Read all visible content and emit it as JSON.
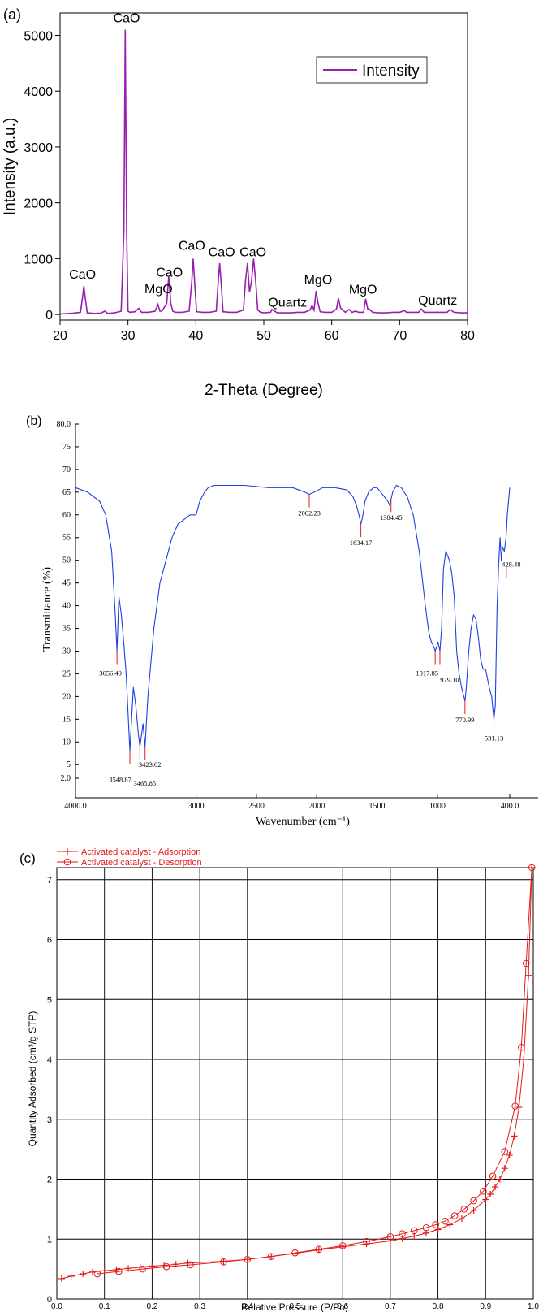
{
  "chart_data": [
    {
      "panel": "(a)",
      "type": "line",
      "xlabel": "2-Theta (Degree)",
      "ylabel": "Intensity (a.u.)",
      "xlim": [
        20,
        80
      ],
      "ylim": [
        -100,
        5400
      ],
      "xticks": [
        20,
        30,
        40,
        50,
        60,
        70,
        80
      ],
      "yticks": [
        0,
        1000,
        2000,
        3000,
        4000,
        5000
      ],
      "legend": {
        "position": "top-right",
        "entries": [
          "Intensity"
        ]
      },
      "color": "#9a1fb0",
      "series": [
        {
          "name": "Intensity",
          "x": [
            20,
            21,
            22,
            23,
            23.3,
            23.5,
            23.7,
            24,
            25,
            26,
            26.6,
            27,
            28,
            29,
            29.4,
            29.6,
            29.8,
            30,
            30.3,
            31,
            31.6,
            32,
            33,
            34,
            34.4,
            34.7,
            35,
            35.7,
            36,
            36.3,
            36.6,
            37,
            38,
            39,
            39.4,
            39.6,
            39.8,
            40.1,
            41,
            42,
            43,
            43.3,
            43.5,
            43.7,
            44,
            45,
            46,
            47,
            47.3,
            47.6,
            47.9,
            48.2,
            48.5,
            48.8,
            49.1,
            49.5,
            50,
            51,
            51.2,
            52,
            53,
            54,
            55,
            56,
            56.8,
            57.1,
            57.4,
            57.7,
            58,
            58.3,
            59,
            60,
            60.7,
            61,
            61.3,
            62,
            62.6,
            63,
            63.5,
            64,
            64.7,
            65,
            65.3,
            65.6,
            66,
            67,
            68,
            69,
            70,
            70.7,
            71,
            72,
            72.8,
            73.2,
            73.6,
            74,
            75,
            76,
            77,
            77.4,
            78,
            79,
            80
          ],
          "y": [
            10,
            15,
            25,
            40,
            300,
            510,
            300,
            30,
            20,
            25,
            60,
            20,
            30,
            60,
            1500,
            5100,
            1500,
            60,
            40,
            50,
            110,
            40,
            40,
            60,
            180,
            60,
            60,
            200,
            680,
            200,
            60,
            40,
            40,
            60,
            600,
            1000,
            600,
            50,
            40,
            40,
            60,
            600,
            920,
            600,
            50,
            40,
            40,
            80,
            600,
            920,
            400,
            600,
            1000,
            600,
            80,
            40,
            30,
            40,
            90,
            30,
            30,
            30,
            40,
            40,
            80,
            160,
            80,
            420,
            200,
            50,
            40,
            40,
            100,
            290,
            120,
            40,
            90,
            40,
            60,
            40,
            40,
            280,
            100,
            90,
            40,
            30,
            30,
            40,
            40,
            70,
            40,
            40,
            40,
            100,
            40,
            40,
            40,
            40,
            40,
            90,
            40,
            30,
            30
          ]
        }
      ],
      "annotations": [
        {
          "text": "CaO",
          "x": 23.3,
          "y": 640
        },
        {
          "text": "CaO",
          "x": 29.8,
          "y": 5230
        },
        {
          "text": "MgO",
          "x": 34.5,
          "y": 380
        },
        {
          "text": "CaO",
          "x": 36.1,
          "y": 680
        },
        {
          "text": "CaO",
          "x": 39.4,
          "y": 1160
        },
        {
          "text": "CaO",
          "x": 43.8,
          "y": 1040
        },
        {
          "text": "CaO",
          "x": 48.4,
          "y": 1040
        },
        {
          "text": "Quartz",
          "x": 53.5,
          "y": 140
        },
        {
          "text": "MgO",
          "x": 58,
          "y": 550
        },
        {
          "text": "MgO",
          "x": 64.6,
          "y": 370
        },
        {
          "text": "Quartz",
          "x": 75.6,
          "y": 180
        }
      ]
    },
    {
      "panel": "(b)",
      "type": "line",
      "xlabel": "Wavenumber  (cm⁻¹)",
      "ylabel": "Transmittance  (%)",
      "xlim": [
        4000,
        400
      ],
      "ylim": [
        2,
        80
      ],
      "xticks": [
        {
          "v": 4000,
          "l": "4000.0"
        },
        {
          "v": 3000,
          "l": "3000"
        },
        {
          "v": 2500,
          "l": "2500"
        },
        {
          "v": 2000,
          "l": "2000"
        },
        {
          "v": 1500,
          "l": "1500"
        },
        {
          "v": 1000,
          "l": "1000"
        },
        {
          "v": 400,
          "l": "400.0"
        }
      ],
      "yticks": [
        {
          "v": 2,
          "l": "2.0"
        },
        {
          "v": 5,
          "l": "5"
        },
        {
          "v": 10,
          "l": "10"
        },
        {
          "v": 15,
          "l": "15"
        },
        {
          "v": 20,
          "l": "20"
        },
        {
          "v": 25,
          "l": "25"
        },
        {
          "v": 30,
          "l": "30"
        },
        {
          "v": 35,
          "l": "35"
        },
        {
          "v": 40,
          "l": "40"
        },
        {
          "v": 45,
          "l": "45"
        },
        {
          "v": 50,
          "l": "50"
        },
        {
          "v": 55,
          "l": "55"
        },
        {
          "v": 60,
          "l": "60"
        },
        {
          "v": 65,
          "l": "65"
        },
        {
          "v": 70,
          "l": "70"
        },
        {
          "v": 75,
          "l": "75"
        },
        {
          "v": 80,
          "l": "80.0"
        }
      ],
      "color": "#1f3fe0",
      "series": [
        {
          "name": "",
          "x": [
            4000,
            3900,
            3800,
            3750,
            3700,
            3670,
            3656,
            3640,
            3620,
            3600,
            3580,
            3560,
            3549,
            3535,
            3520,
            3500,
            3480,
            3466,
            3450,
            3440,
            3423,
            3400,
            3350,
            3300,
            3250,
            3200,
            3150,
            3100,
            3050,
            3000,
            2970,
            2950,
            2930,
            2900,
            2850,
            2800,
            2700,
            2600,
            2400,
            2200,
            2100,
            2062,
            2020,
            1950,
            1850,
            1750,
            1700,
            1670,
            1650,
            1634,
            1620,
            1600,
            1570,
            1530,
            1500,
            1470,
            1440,
            1410,
            1395,
            1384,
            1370,
            1340,
            1300,
            1250,
            1200,
            1150,
            1100,
            1070,
            1050,
            1030,
            1018,
            1005,
            995,
            979,
            965,
            950,
            930,
            900,
            880,
            860,
            840,
            820,
            800,
            780,
            771,
            760,
            740,
            720,
            700,
            680,
            660,
            640,
            620,
            600,
            585,
            570,
            550,
            531,
            520,
            505,
            490,
            480,
            470,
            460,
            445,
            430,
            420,
            410,
            400
          ],
          "y": [
            66,
            65,
            63,
            60,
            52,
            38,
            30,
            42,
            38,
            32,
            25,
            14,
            8,
            15,
            22,
            18,
            12,
            9,
            12,
            14,
            9,
            20,
            35,
            45,
            50,
            55,
            58,
            59,
            60,
            60,
            63,
            64,
            65,
            66,
            66.5,
            66.5,
            66.5,
            66.5,
            66,
            66,
            65,
            64.5,
            65,
            66,
            66,
            65.5,
            64,
            62,
            60,
            58,
            59.5,
            63,
            65,
            66,
            66,
            65,
            64,
            63,
            62,
            63.5,
            65,
            66.5,
            66,
            64,
            60,
            52,
            40,
            34,
            32,
            31,
            30,
            31,
            32,
            30,
            35,
            48,
            52,
            50,
            47,
            42,
            30,
            25,
            22,
            20,
            19,
            22,
            30,
            35,
            38,
            37,
            33,
            28,
            26,
            26,
            24,
            22,
            20,
            15,
            18,
            40,
            50,
            55,
            50,
            53,
            52,
            55,
            60,
            63,
            66
          ]
        }
      ],
      "peaks": [
        {
          "label": "3656.40",
          "x": 3656,
          "y": 30
        },
        {
          "label": "3548.87",
          "x": 3549,
          "y": 8
        },
        {
          "label": "3465.85",
          "x": 3466,
          "y": 9
        },
        {
          "label": "3423.02",
          "x": 3423,
          "y": 9
        },
        {
          "label": "2062.23",
          "x": 2062,
          "y": 64.5
        },
        {
          "label": "1634.17",
          "x": 1634,
          "y": 58
        },
        {
          "label": "1384.45",
          "x": 1384,
          "y": 63.5
        },
        {
          "label": "1017.85",
          "x": 1018,
          "y": 30
        },
        {
          "label": "979.10",
          "x": 979,
          "y": 30
        },
        {
          "label": "770.99",
          "x": 771,
          "y": 19
        },
        {
          "label": "531.13",
          "x": 531,
          "y": 15
        },
        {
          "label": "428.48",
          "x": 428,
          "y": 49
        }
      ]
    },
    {
      "panel": "(c)",
      "type": "line",
      "xlabel": "Relative Pressure (P/Po)",
      "ylabel": "Quantity Adsorbed (cm³/g STP)",
      "xlim": [
        0,
        1.0
      ],
      "ylim": [
        0,
        7.2
      ],
      "xticks": [
        {
          "v": 0,
          "l": "0.0"
        },
        {
          "v": 0.1,
          "l": "0.1"
        },
        {
          "v": 0.2,
          "l": "0.2"
        },
        {
          "v": 0.3,
          "l": "0.3"
        },
        {
          "v": 0.4,
          "l": "0.4"
        },
        {
          "v": 0.5,
          "l": "0.5"
        },
        {
          "v": 0.6,
          "l": "0.6"
        },
        {
          "v": 0.7,
          "l": "0.7"
        },
        {
          "v": 0.8,
          "l": "0.8"
        },
        {
          "v": 0.9,
          "l": "0.9"
        },
        {
          "v": 1.0,
          "l": "1.0"
        }
      ],
      "yticks": [
        {
          "v": 0,
          "l": "0"
        },
        {
          "v": 1,
          "l": "1"
        },
        {
          "v": 2,
          "l": "2"
        },
        {
          "v": 3,
          "l": "3"
        },
        {
          "v": 4,
          "l": "4"
        },
        {
          "v": 5,
          "l": "5"
        },
        {
          "v": 6,
          "l": "6"
        },
        {
          "v": 7,
          "l": "7"
        }
      ],
      "grid": true,
      "legend": {
        "position": "top-left",
        "entries": [
          "Activated catalyst - Adsorption",
          "Activated catalyst - Desorption"
        ]
      },
      "color": "#e41a1a",
      "series": [
        {
          "name": "Activated catalyst - Adsorption",
          "marker": "plus",
          "x": [
            0.01,
            0.03,
            0.055,
            0.075,
            0.1,
            0.125,
            0.15,
            0.175,
            0.2,
            0.225,
            0.25,
            0.275,
            0.35,
            0.4,
            0.45,
            0.5,
            0.55,
            0.6,
            0.65,
            0.7,
            0.725,
            0.75,
            0.775,
            0.8,
            0.825,
            0.85,
            0.875,
            0.9,
            0.91,
            0.92,
            0.93,
            0.94,
            0.95,
            0.96,
            0.97,
            0.98,
            0.99,
            0.997
          ],
          "y": [
            0.34,
            0.38,
            0.42,
            0.45,
            0.47,
            0.49,
            0.51,
            0.53,
            0.55,
            0.56,
            0.58,
            0.6,
            0.63,
            0.66,
            0.71,
            0.76,
            0.82,
            0.87,
            0.92,
            0.97,
            1.01,
            1.05,
            1.1,
            1.16,
            1.24,
            1.34,
            1.48,
            1.66,
            1.75,
            1.87,
            2.0,
            2.18,
            2.4,
            2.72,
            3.2,
            4.0,
            5.4,
            7.2
          ]
        },
        {
          "name": "Activated catalyst - Desorption",
          "marker": "circle",
          "x": [
            0.997,
            0.985,
            0.975,
            0.962,
            0.94,
            0.915,
            0.895,
            0.875,
            0.855,
            0.835,
            0.815,
            0.795,
            0.775,
            0.75,
            0.725,
            0.7,
            0.65,
            0.6,
            0.55,
            0.5,
            0.45,
            0.4,
            0.35,
            0.28,
            0.23,
            0.18,
            0.13,
            0.085
          ],
          "y": [
            7.2,
            5.6,
            4.2,
            3.22,
            2.46,
            2.05,
            1.8,
            1.64,
            1.5,
            1.39,
            1.3,
            1.24,
            1.19,
            1.14,
            1.09,
            1.04,
            0.96,
            0.89,
            0.83,
            0.77,
            0.71,
            0.66,
            0.62,
            0.57,
            0.54,
            0.5,
            0.46,
            0.42
          ]
        }
      ]
    }
  ]
}
